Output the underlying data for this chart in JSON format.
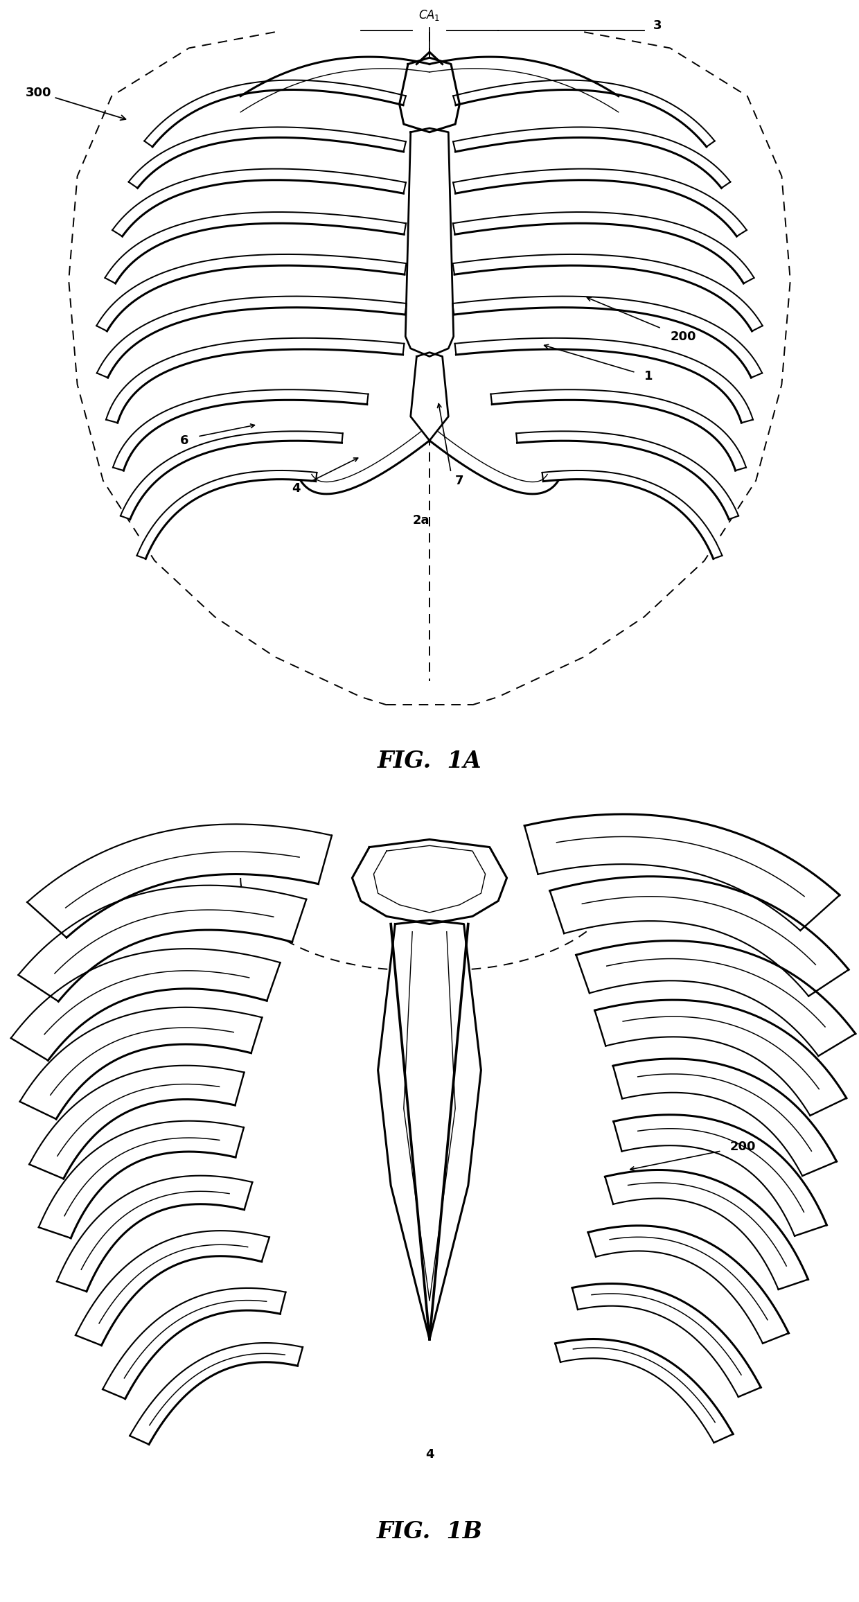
{
  "fig1a_label": "FIG.  1A",
  "fig1b_label": "FIG.  1B",
  "bg_color": "#ffffff",
  "line_color": "#000000",
  "lw_thick": 2.2,
  "lw_thin": 1.0,
  "lw_dash": 1.4,
  "label_fontsize": 13
}
